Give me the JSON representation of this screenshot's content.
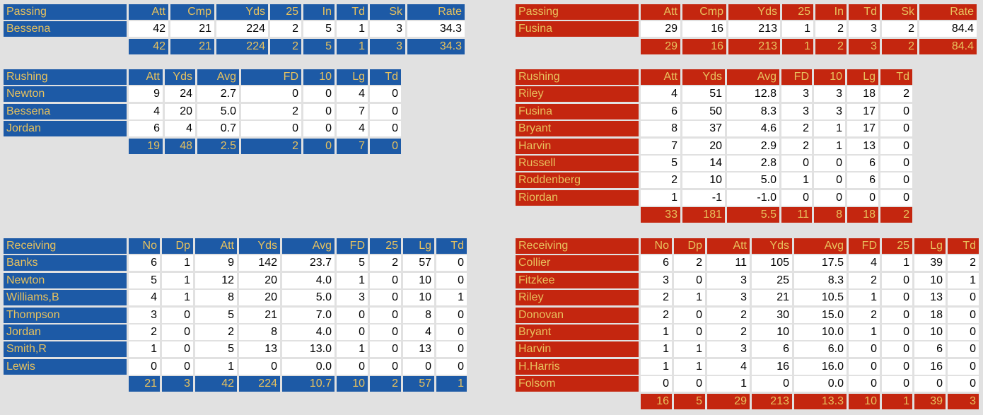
{
  "left": {
    "passing": {
      "header": [
        "Passing",
        "Att",
        "Cmp",
        "Yds",
        "25",
        "In",
        "Td",
        "Sk",
        "Rate"
      ],
      "rows": [
        [
          "Bessena",
          "42",
          "21",
          "224",
          "2",
          "5",
          "1",
          "3",
          "34.3"
        ]
      ],
      "totals": [
        "42",
        "21",
        "224",
        "2",
        "5",
        "1",
        "3",
        "34.3"
      ]
    },
    "rushing": {
      "header": [
        "Rushing",
        "Att",
        "Yds",
        "Avg",
        "FD",
        "10",
        "Lg",
        "Td"
      ],
      "rows": [
        [
          "Newton",
          "9",
          "24",
          "2.7",
          "0",
          "0",
          "4",
          "0"
        ],
        [
          "Bessena",
          "4",
          "20",
          "5.0",
          "2",
          "0",
          "7",
          "0"
        ],
        [
          "Jordan",
          "6",
          "4",
          "0.7",
          "0",
          "0",
          "4",
          "0"
        ]
      ],
      "totals": [
        "19",
        "48",
        "2.5",
        "2",
        "0",
        "7",
        "0"
      ]
    },
    "receiving": {
      "header": [
        "Receiving",
        "No",
        "Dp",
        "Att",
        "Yds",
        "Avg",
        "FD",
        "25",
        "Lg",
        "Td"
      ],
      "rows": [
        [
          "Banks",
          "6",
          "1",
          "9",
          "142",
          "23.7",
          "5",
          "2",
          "57",
          "0"
        ],
        [
          "Newton",
          "5",
          "1",
          "12",
          "20",
          "4.0",
          "1",
          "0",
          "10",
          "0"
        ],
        [
          "Williams,B",
          "4",
          "1",
          "8",
          "20",
          "5.0",
          "3",
          "0",
          "10",
          "1"
        ],
        [
          "Thompson",
          "3",
          "0",
          "5",
          "21",
          "7.0",
          "0",
          "0",
          "8",
          "0"
        ],
        [
          "Jordan",
          "2",
          "0",
          "2",
          "8",
          "4.0",
          "0",
          "0",
          "4",
          "0"
        ],
        [
          "Smith,R",
          "1",
          "0",
          "5",
          "13",
          "13.0",
          "1",
          "0",
          "13",
          "0"
        ],
        [
          "Lewis",
          "0",
          "0",
          "1",
          "0",
          "0.0",
          "0",
          "0",
          "0",
          "0"
        ]
      ],
      "totals": [
        "21",
        "3",
        "42",
        "224",
        "10.7",
        "10",
        "2",
        "57",
        "1"
      ]
    }
  },
  "right": {
    "passing": {
      "header": [
        "Passing",
        "Att",
        "Cmp",
        "Yds",
        "25",
        "In",
        "Td",
        "Sk",
        "Rate"
      ],
      "rows": [
        [
          "Fusina",
          "29",
          "16",
          "213",
          "1",
          "2",
          "3",
          "2",
          "84.4"
        ]
      ],
      "totals": [
        "29",
        "16",
        "213",
        "1",
        "2",
        "3",
        "2",
        "84.4"
      ]
    },
    "rushing": {
      "header": [
        "Rushing",
        "Att",
        "Yds",
        "Avg",
        "FD",
        "10",
        "Lg",
        "Td"
      ],
      "rows": [
        [
          "Riley",
          "4",
          "51",
          "12.8",
          "3",
          "3",
          "18",
          "2"
        ],
        [
          "Fusina",
          "6",
          "50",
          "8.3",
          "3",
          "3",
          "17",
          "0"
        ],
        [
          "Bryant",
          "8",
          "37",
          "4.6",
          "2",
          "1",
          "17",
          "0"
        ],
        [
          "Harvin",
          "7",
          "20",
          "2.9",
          "2",
          "1",
          "13",
          "0"
        ],
        [
          "Russell",
          "5",
          "14",
          "2.8",
          "0",
          "0",
          "6",
          "0"
        ],
        [
          "Roddenberg",
          "2",
          "10",
          "5.0",
          "1",
          "0",
          "6",
          "0"
        ],
        [
          "Riordan",
          "1",
          "-1",
          "-1.0",
          "0",
          "0",
          "0",
          "0"
        ]
      ],
      "totals": [
        "33",
        "181",
        "5.5",
        "11",
        "8",
        "18",
        "2"
      ]
    },
    "receiving": {
      "header": [
        "Receiving",
        "No",
        "Dp",
        "Att",
        "Yds",
        "Avg",
        "FD",
        "25",
        "Lg",
        "Td"
      ],
      "rows": [
        [
          "Collier",
          "6",
          "2",
          "11",
          "105",
          "17.5",
          "4",
          "1",
          "39",
          "2"
        ],
        [
          "Fitzkee",
          "3",
          "0",
          "3",
          "25",
          "8.3",
          "2",
          "0",
          "10",
          "1"
        ],
        [
          "Riley",
          "2",
          "1",
          "3",
          "21",
          "10.5",
          "1",
          "0",
          "13",
          "0"
        ],
        [
          "Donovan",
          "2",
          "0",
          "2",
          "30",
          "15.0",
          "2",
          "0",
          "18",
          "0"
        ],
        [
          "Bryant",
          "1",
          "0",
          "2",
          "10",
          "10.0",
          "1",
          "0",
          "10",
          "0"
        ],
        [
          "Harvin",
          "1",
          "1",
          "3",
          "6",
          "6.0",
          "0",
          "0",
          "6",
          "0"
        ],
        [
          "H.Harris",
          "1",
          "1",
          "4",
          "16",
          "16.0",
          "0",
          "0",
          "16",
          "0"
        ],
        [
          "Folsom",
          "0",
          "0",
          "1",
          "0",
          "0.0",
          "0",
          "0",
          "0",
          "0"
        ]
      ],
      "totals": [
        "16",
        "5",
        "29",
        "213",
        "13.3",
        "10",
        "1",
        "39",
        "3"
      ]
    }
  }
}
